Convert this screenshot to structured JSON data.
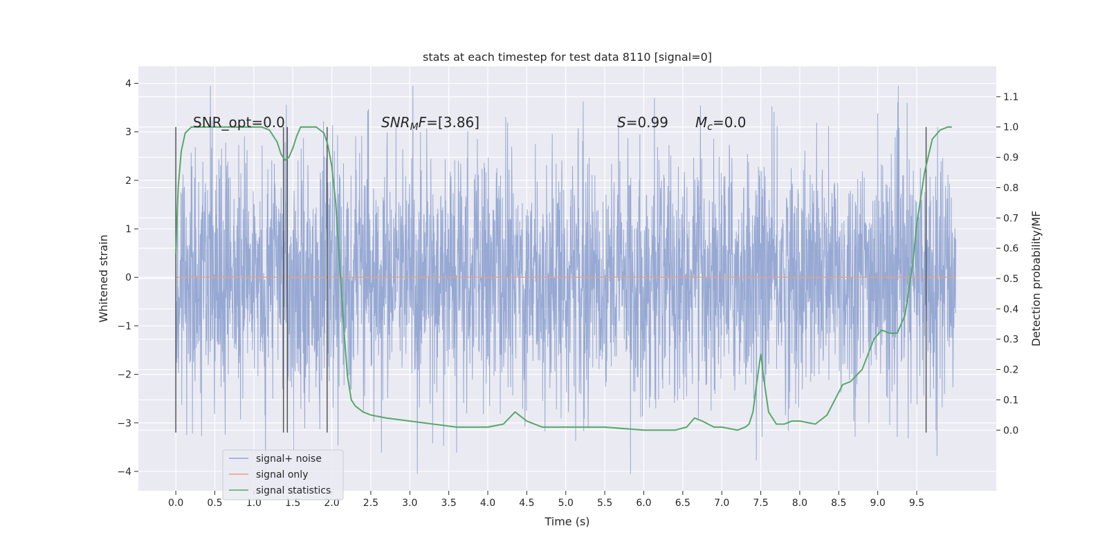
{
  "chart_data": {
    "type": "line",
    "title": "stats at each timestep for test data 8110 [signal=0]",
    "xlabel": "Time (s)",
    "ylabel_left": "Whitened strain",
    "ylabel_right": "Detection probability/MF",
    "xlim": [
      -0.48,
      10.52
    ],
    "ylim_left": [
      -4.4,
      4.35
    ],
    "ylim_right": [
      -0.2,
      1.2
    ],
    "x_ticks": [
      "0.0",
      "0.5",
      "1.0",
      "1.5",
      "2.0",
      "2.5",
      "3.0",
      "3.5",
      "4.0",
      "4.5",
      "5.0",
      "5.5",
      "6.0",
      "6.5",
      "7.0",
      "7.5",
      "8.0",
      "8.5",
      "9.0",
      "9.5"
    ],
    "y_ticks_left": [
      "4",
      "3",
      "2",
      "1",
      "0",
      "−1",
      "−2",
      "−3",
      "−4"
    ],
    "y_ticks_right": [
      "1.1",
      "1.0",
      "0.9",
      "0.8",
      "0.7",
      "0.6",
      "0.5",
      "0.4",
      "0.3",
      "0.2",
      "0.1",
      "0.0"
    ],
    "grid": true,
    "legend_position": "lower-left",
    "legend": [
      "signal+ noise",
      "signal only",
      "signal statistics"
    ],
    "annotations": {
      "snr_opt": "SNR_opt=0.0",
      "snr_mf": "=[3.86]",
      "s": "=0.99",
      "mc": "=0.0"
    },
    "series": [
      {
        "name": "signal+ noise",
        "color": "#8ea2cf",
        "x_range": [
          0,
          10
        ],
        "typical_amplitude": 2.0,
        "peak_max": 3.95,
        "peak_min": -4.05
      },
      {
        "name": "signal only",
        "color": "#e6a085",
        "x": [
          0,
          10
        ],
        "y": [
          0,
          0
        ]
      },
      {
        "name": "signal statistics",
        "color": "#55a868",
        "x": [
          0.0,
          0.03,
          0.07,
          0.12,
          0.2,
          0.4,
          0.6,
          0.8,
          1.0,
          1.1,
          1.2,
          1.3,
          1.35,
          1.4,
          1.45,
          1.5,
          1.55,
          1.6,
          1.7,
          1.8,
          1.9,
          1.95,
          2.0,
          2.05,
          2.1,
          2.15,
          2.2,
          2.25,
          2.3,
          2.35,
          2.4,
          2.5,
          2.7,
          3.0,
          3.3,
          3.6,
          4.0,
          4.2,
          4.35,
          4.5,
          4.7,
          5.0,
          5.3,
          5.5,
          6.0,
          6.4,
          6.55,
          6.65,
          6.75,
          6.9,
          7.0,
          7.2,
          7.3,
          7.35,
          7.4,
          7.45,
          7.5,
          7.55,
          7.6,
          7.7,
          7.8,
          7.9,
          8.0,
          8.2,
          8.35,
          8.45,
          8.55,
          8.65,
          8.8,
          8.95,
          9.05,
          9.15,
          9.25,
          9.35,
          9.45,
          9.5,
          9.6,
          9.7,
          9.8,
          9.9,
          9.95
        ],
        "y": [
          0.58,
          0.8,
          0.92,
          0.98,
          1.0,
          1.0,
          1.0,
          1.0,
          1.0,
          1.0,
          0.99,
          0.95,
          0.91,
          0.89,
          0.9,
          0.93,
          0.97,
          1.0,
          1.0,
          1.0,
          0.98,
          0.94,
          0.87,
          0.75,
          0.55,
          0.35,
          0.18,
          0.1,
          0.08,
          0.07,
          0.06,
          0.05,
          0.04,
          0.03,
          0.02,
          0.01,
          0.01,
          0.02,
          0.06,
          0.03,
          0.01,
          0.01,
          0.01,
          0.01,
          0.0,
          0.0,
          0.01,
          0.04,
          0.03,
          0.01,
          0.01,
          0.0,
          0.01,
          0.02,
          0.06,
          0.16,
          0.25,
          0.15,
          0.06,
          0.02,
          0.02,
          0.03,
          0.03,
          0.02,
          0.05,
          0.1,
          0.15,
          0.16,
          0.2,
          0.3,
          0.33,
          0.32,
          0.32,
          0.38,
          0.55,
          0.68,
          0.85,
          0.96,
          0.99,
          1.0,
          1.0
        ]
      }
    ],
    "vertical_markers_x": [
      0.0,
      1.38,
      1.43,
      1.94,
      9.62
    ],
    "vertical_markers_ylim_left": [
      -3.2,
      3.1
    ]
  }
}
